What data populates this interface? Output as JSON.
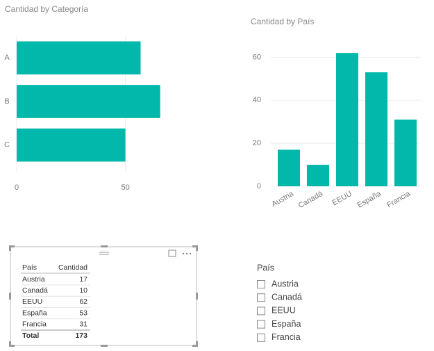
{
  "chart_data": [
    {
      "type": "hbar",
      "title": "Cantidad by Categoría",
      "categories": [
        "A",
        "B",
        "C"
      ],
      "values": [
        57,
        66,
        50
      ],
      "color": "#01b8aa",
      "xlim": [
        0,
        76
      ],
      "xticks": [
        0,
        50
      ],
      "grid": true
    },
    {
      "type": "bar",
      "title": "Cantidad by País",
      "categories": [
        "Austria",
        "Canadá",
        "EEUU",
        "España",
        "Francia"
      ],
      "values": [
        17,
        10,
        62,
        53,
        31
      ],
      "color": "#01b8aa",
      "ylim": [
        0,
        64
      ],
      "yticks": [
        0,
        20,
        40,
        60
      ],
      "grid": true
    }
  ],
  "table": {
    "header": [
      "País",
      "Cantidad"
    ],
    "rows": [
      [
        "Austria",
        17
      ],
      [
        "Canadá",
        10
      ],
      [
        "EEUU",
        62
      ],
      [
        "España",
        53
      ],
      [
        "Francia",
        31
      ]
    ],
    "total": [
      "Total",
      173
    ]
  },
  "slicer": {
    "title": "País",
    "items": [
      "Austria",
      "Canadá",
      "EEUU",
      "España",
      "Francia"
    ]
  }
}
